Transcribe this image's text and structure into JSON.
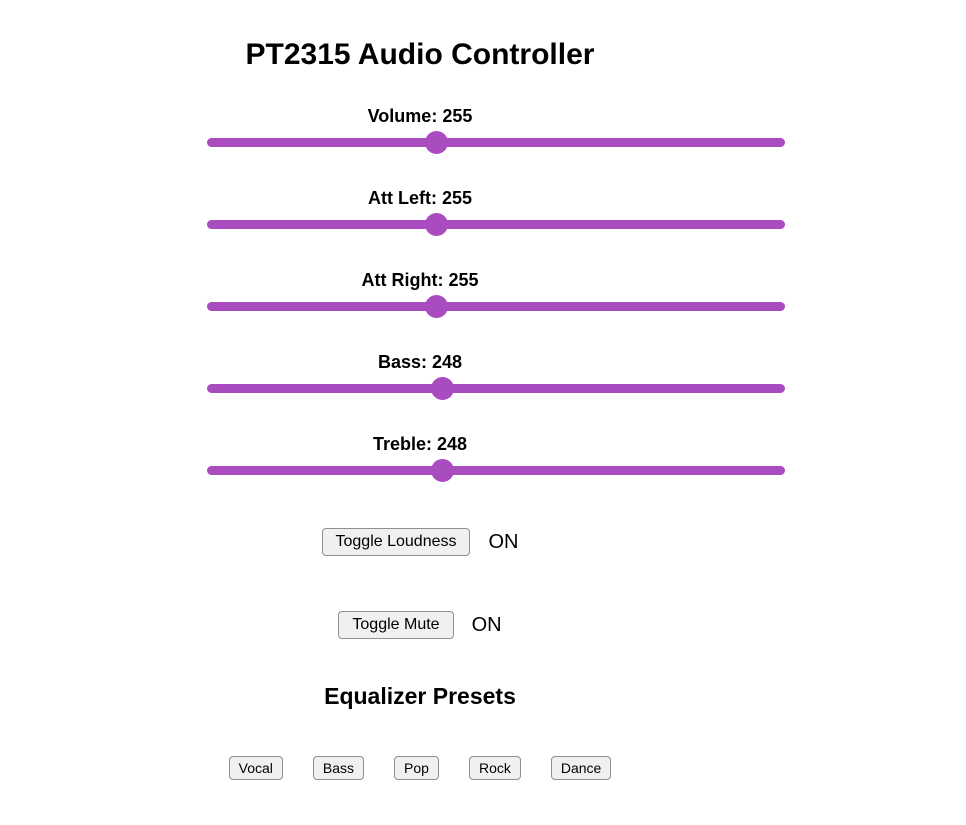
{
  "title": "PT2315 Audio Controller",
  "colors": {
    "accent": "#a84cbf"
  },
  "sliders": [
    {
      "name": "volume",
      "label": "Volume",
      "value": 255,
      "max": 255,
      "display": "Volume: 255"
    },
    {
      "name": "att-left",
      "label": "Att Left",
      "value": 255,
      "max": 255,
      "display": "Att Left: 255"
    },
    {
      "name": "att-right",
      "label": "Att Right",
      "value": 255,
      "max": 255,
      "display": "Att Right: 255"
    },
    {
      "name": "bass",
      "label": "Bass",
      "value": 248,
      "max": 248,
      "display": "Bass: 248"
    },
    {
      "name": "treble",
      "label": "Treble",
      "value": 248,
      "max": 248,
      "display": "Treble: 248"
    }
  ],
  "toggles": [
    {
      "name": "loudness",
      "button_label": "Toggle Loudness",
      "status": "ON"
    },
    {
      "name": "mute",
      "button_label": "Toggle Mute",
      "status": "ON"
    }
  ],
  "equalizer": {
    "heading": "Equalizer Presets",
    "presets": [
      "Vocal",
      "Bass",
      "Pop",
      "Rock",
      "Dance"
    ]
  }
}
